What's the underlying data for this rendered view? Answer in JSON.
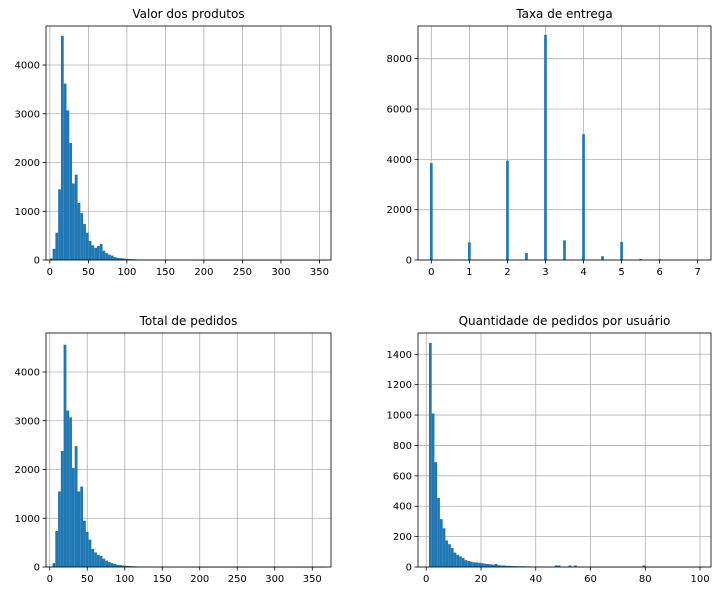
{
  "chart_data": [
    {
      "type": "bar",
      "title": "Valor dos produtos",
      "xlabel": "",
      "ylabel": "",
      "xlim": [
        -5,
        365
      ],
      "ylim": [
        0,
        4800
      ],
      "xticks": [
        0,
        50,
        100,
        150,
        200,
        250,
        300,
        350
      ],
      "yticks": [
        0,
        1000,
        2000,
        3000,
        4000
      ],
      "grid": true,
      "bin_width": 3.6,
      "bin_start": 0,
      "values": [
        30,
        230,
        560,
        1450,
        4600,
        3620,
        3070,
        2400,
        1570,
        1750,
        1170,
        960,
        740,
        560,
        390,
        300,
        250,
        290,
        330,
        190,
        140,
        110,
        90,
        60,
        45,
        38,
        32,
        25,
        20,
        18,
        15,
        12,
        10,
        8,
        7,
        6,
        5,
        5,
        4,
        4,
        3,
        3,
        3,
        2,
        2,
        2,
        2,
        2,
        2,
        2,
        2,
        2,
        2,
        1,
        1,
        1,
        1,
        1,
        1,
        1,
        1,
        1,
        1,
        1,
        1,
        1,
        1,
        1,
        1,
        1,
        1,
        1,
        1,
        1,
        1,
        1,
        1,
        1,
        1,
        1,
        1,
        1,
        1,
        1,
        1,
        1,
        1,
        1,
        1,
        1,
        1,
        1,
        1,
        1,
        1,
        1,
        1,
        1,
        1,
        1
      ]
    },
    {
      "type": "bar",
      "title": "Taxa de entrega",
      "xlabel": "",
      "ylabel": "",
      "xlim": [
        -0.35,
        7.35
      ],
      "ylim": [
        0,
        9300
      ],
      "xticks": [
        0,
        1,
        2,
        3,
        4,
        5,
        6,
        7
      ],
      "yticks": [
        0,
        2000,
        4000,
        6000,
        8000
      ],
      "grid": true,
      "bin_width": 0.07,
      "bars": [
        {
          "x": 0.0,
          "value": 3850
        },
        {
          "x": 1.0,
          "value": 700
        },
        {
          "x": 2.0,
          "value": 3950
        },
        {
          "x": 2.5,
          "value": 280
        },
        {
          "x": 3.0,
          "value": 8950
        },
        {
          "x": 3.5,
          "value": 780
        },
        {
          "x": 4.0,
          "value": 5000
        },
        {
          "x": 4.5,
          "value": 150
        },
        {
          "x": 5.0,
          "value": 720
        },
        {
          "x": 5.5,
          "value": 40
        },
        {
          "x": 6.0,
          "value": 30
        },
        {
          "x": 7.0,
          "value": 10
        }
      ]
    },
    {
      "type": "bar",
      "title": "Total de pedidos",
      "xlabel": "",
      "ylabel": "",
      "xlim": [
        -5,
        375
      ],
      "ylim": [
        0,
        4800
      ],
      "xticks": [
        0,
        50,
        100,
        150,
        200,
        250,
        300,
        350
      ],
      "yticks": [
        0,
        1000,
        2000,
        3000,
        4000
      ],
      "grid": true,
      "bin_width": 3.7,
      "bin_start": 0,
      "values": [
        10,
        80,
        740,
        1550,
        2380,
        4560,
        3210,
        3070,
        2030,
        2480,
        1550,
        1650,
        950,
        720,
        560,
        370,
        300,
        250,
        230,
        170,
        130,
        100,
        80,
        60,
        45,
        40,
        30,
        25,
        20,
        18,
        15,
        12,
        10,
        8,
        7,
        6,
        5,
        5,
        4,
        4,
        3,
        3,
        3,
        2,
        2,
        2,
        2,
        2,
        2,
        2,
        2,
        1,
        1,
        1,
        1,
        1,
        1,
        1,
        1,
        1,
        1,
        1,
        1,
        1,
        1,
        1,
        1,
        1,
        1,
        1,
        1,
        1,
        1,
        1,
        1,
        1,
        1,
        1,
        1,
        1,
        1,
        1,
        1,
        1,
        1,
        1,
        1,
        1,
        1,
        1,
        1,
        1,
        1,
        1,
        1,
        1,
        1,
        1,
        1,
        1
      ]
    },
    {
      "type": "bar",
      "title": "Quantidade de pedidos por usuário",
      "xlabel": "",
      "ylabel": "",
      "xlim": [
        -3,
        104
      ],
      "ylim": [
        0,
        1540
      ],
      "xticks": [
        0,
        20,
        40,
        60,
        80,
        100
      ],
      "yticks": [
        0,
        200,
        400,
        600,
        800,
        1000,
        1200,
        1400
      ],
      "grid": true,
      "bin_width": 1.0,
      "bin_start": 1,
      "values": [
        1475,
        1010,
        690,
        455,
        315,
        255,
        175,
        150,
        125,
        95,
        80,
        70,
        60,
        45,
        40,
        35,
        30,
        30,
        28,
        25,
        22,
        20,
        18,
        16,
        20,
        12,
        10,
        10,
        8,
        8,
        6,
        6,
        5,
        5,
        5,
        4,
        4,
        3,
        3,
        3,
        3,
        3,
        2,
        2,
        2,
        2,
        10,
        10,
        2,
        2,
        2,
        10,
        2,
        10,
        2,
        2,
        2,
        2,
        2,
        2,
        1,
        1,
        1,
        1,
        1,
        1,
        1,
        1,
        1,
        1,
        1,
        1,
        1,
        1,
        1,
        1,
        1,
        1,
        10,
        1,
        1,
        1,
        1,
        1,
        1,
        1,
        1,
        1,
        1,
        1,
        1,
        1,
        1,
        1,
        1,
        1,
        1,
        1,
        1,
        1
      ]
    }
  ]
}
